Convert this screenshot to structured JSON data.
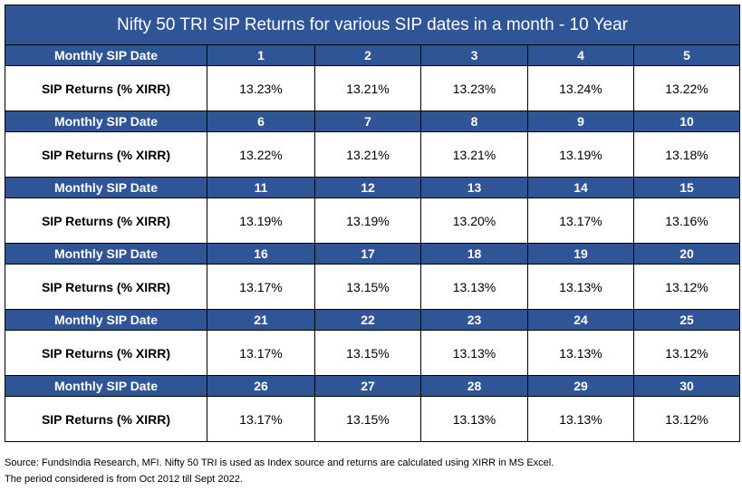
{
  "chart_data": {
    "type": "table",
    "title": "Nifty 50 TRI SIP Returns for various SIP dates in a month - 10 Year",
    "row_headers": {
      "date": "Monthly SIP Date",
      "returns": "SIP Returns (% XIRR)"
    },
    "blocks": [
      {
        "dates": [
          "1",
          "2",
          "3",
          "4",
          "5"
        ],
        "returns": [
          "13.23%",
          "13.21%",
          "13.23%",
          "13.24%",
          "13.22%"
        ]
      },
      {
        "dates": [
          "6",
          "7",
          "8",
          "9",
          "10"
        ],
        "returns": [
          "13.22%",
          "13.21%",
          "13.21%",
          "13.19%",
          "13.18%"
        ]
      },
      {
        "dates": [
          "11",
          "12",
          "13",
          "14",
          "15"
        ],
        "returns": [
          "13.19%",
          "13.19%",
          "13.20%",
          "13.17%",
          "13.16%"
        ]
      },
      {
        "dates": [
          "16",
          "17",
          "18",
          "19",
          "20"
        ],
        "returns": [
          "13.17%",
          "13.15%",
          "13.13%",
          "13.13%",
          "13.12%"
        ]
      },
      {
        "dates": [
          "21",
          "22",
          "23",
          "24",
          "25"
        ],
        "returns": [
          "13.17%",
          "13.15%",
          "13.13%",
          "13.13%",
          "13.12%"
        ]
      },
      {
        "dates": [
          "26",
          "27",
          "28",
          "29",
          "30"
        ],
        "returns": [
          "13.17%",
          "13.15%",
          "13.13%",
          "13.13%",
          "13.12%"
        ]
      }
    ],
    "colors": {
      "header_bg": "#2f5597",
      "header_text": "#ffffff",
      "border": "#000000"
    }
  },
  "footnote": {
    "line1": "Source: FundsIndia Research, MFI. Nifty 50 TRI is used as Index source and returns are calculated using XIRR in MS Excel.",
    "line2": "The period considered is from Oct 2012 till Sept 2022."
  }
}
